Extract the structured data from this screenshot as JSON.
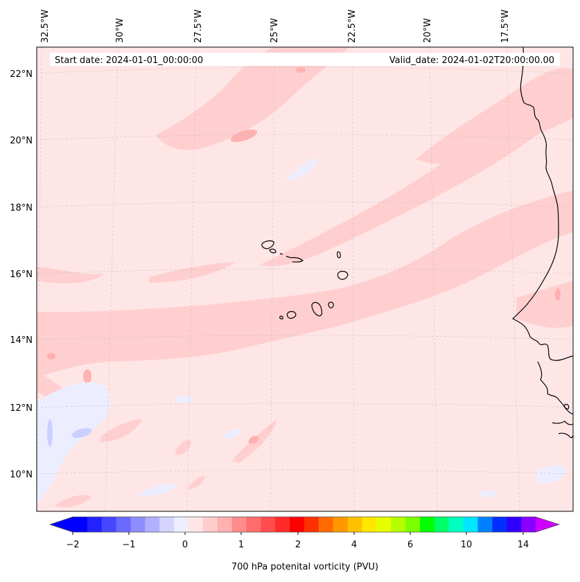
{
  "header": {
    "start_date": "Start date: 2024-01-01_00:00:00",
    "valid_date": "Valid_date: 2024-01-02T20:00:00.00"
  },
  "map": {
    "lon_labels": [
      "32.5°W",
      "30°W",
      "27.5°W",
      "25°W",
      "22.5°W",
      "20°W",
      "17.5°W"
    ],
    "lat_labels": [
      "22°N",
      "20°N",
      "18°N",
      "16°N",
      "14°N",
      "12°N",
      "10°N"
    ],
    "background_color": "#ffe6e6",
    "band_color": "#ffcfcf",
    "spot_color": "#ffb0b0",
    "negative_color": "#eceeff",
    "negative_strong_color": "#ccd0ff",
    "coastline_color": "#000000"
  },
  "colorbar": {
    "label": "700 hPa potenital vorticity (PVU)",
    "tick_labels": [
      "−2",
      "−1",
      "0",
      "1",
      "2",
      "4",
      "6",
      "10",
      "14"
    ],
    "colors": [
      "#0000ff",
      "#2222ff",
      "#4646ff",
      "#6a6aff",
      "#8e8eff",
      "#b0b0ff",
      "#d4d4ff",
      "#eeeeff",
      "#ffe6e6",
      "#ffcccc",
      "#ffb0b0",
      "#ff8c8c",
      "#ff6c6c",
      "#ff4c4c",
      "#ff2a2a",
      "#ff0000",
      "#ff3000",
      "#ff6a00",
      "#ff9800",
      "#ffc000",
      "#ffe800",
      "#e6ff00",
      "#b4ff00",
      "#7cff00",
      "#00ff00",
      "#00ff6a",
      "#00ffc0",
      "#00e6ff",
      "#0080ff",
      "#0030ff",
      "#3000ff",
      "#8800ff"
    ],
    "extend_min_color": "#0000ff",
    "extend_max_color": "#cc00ff"
  }
}
